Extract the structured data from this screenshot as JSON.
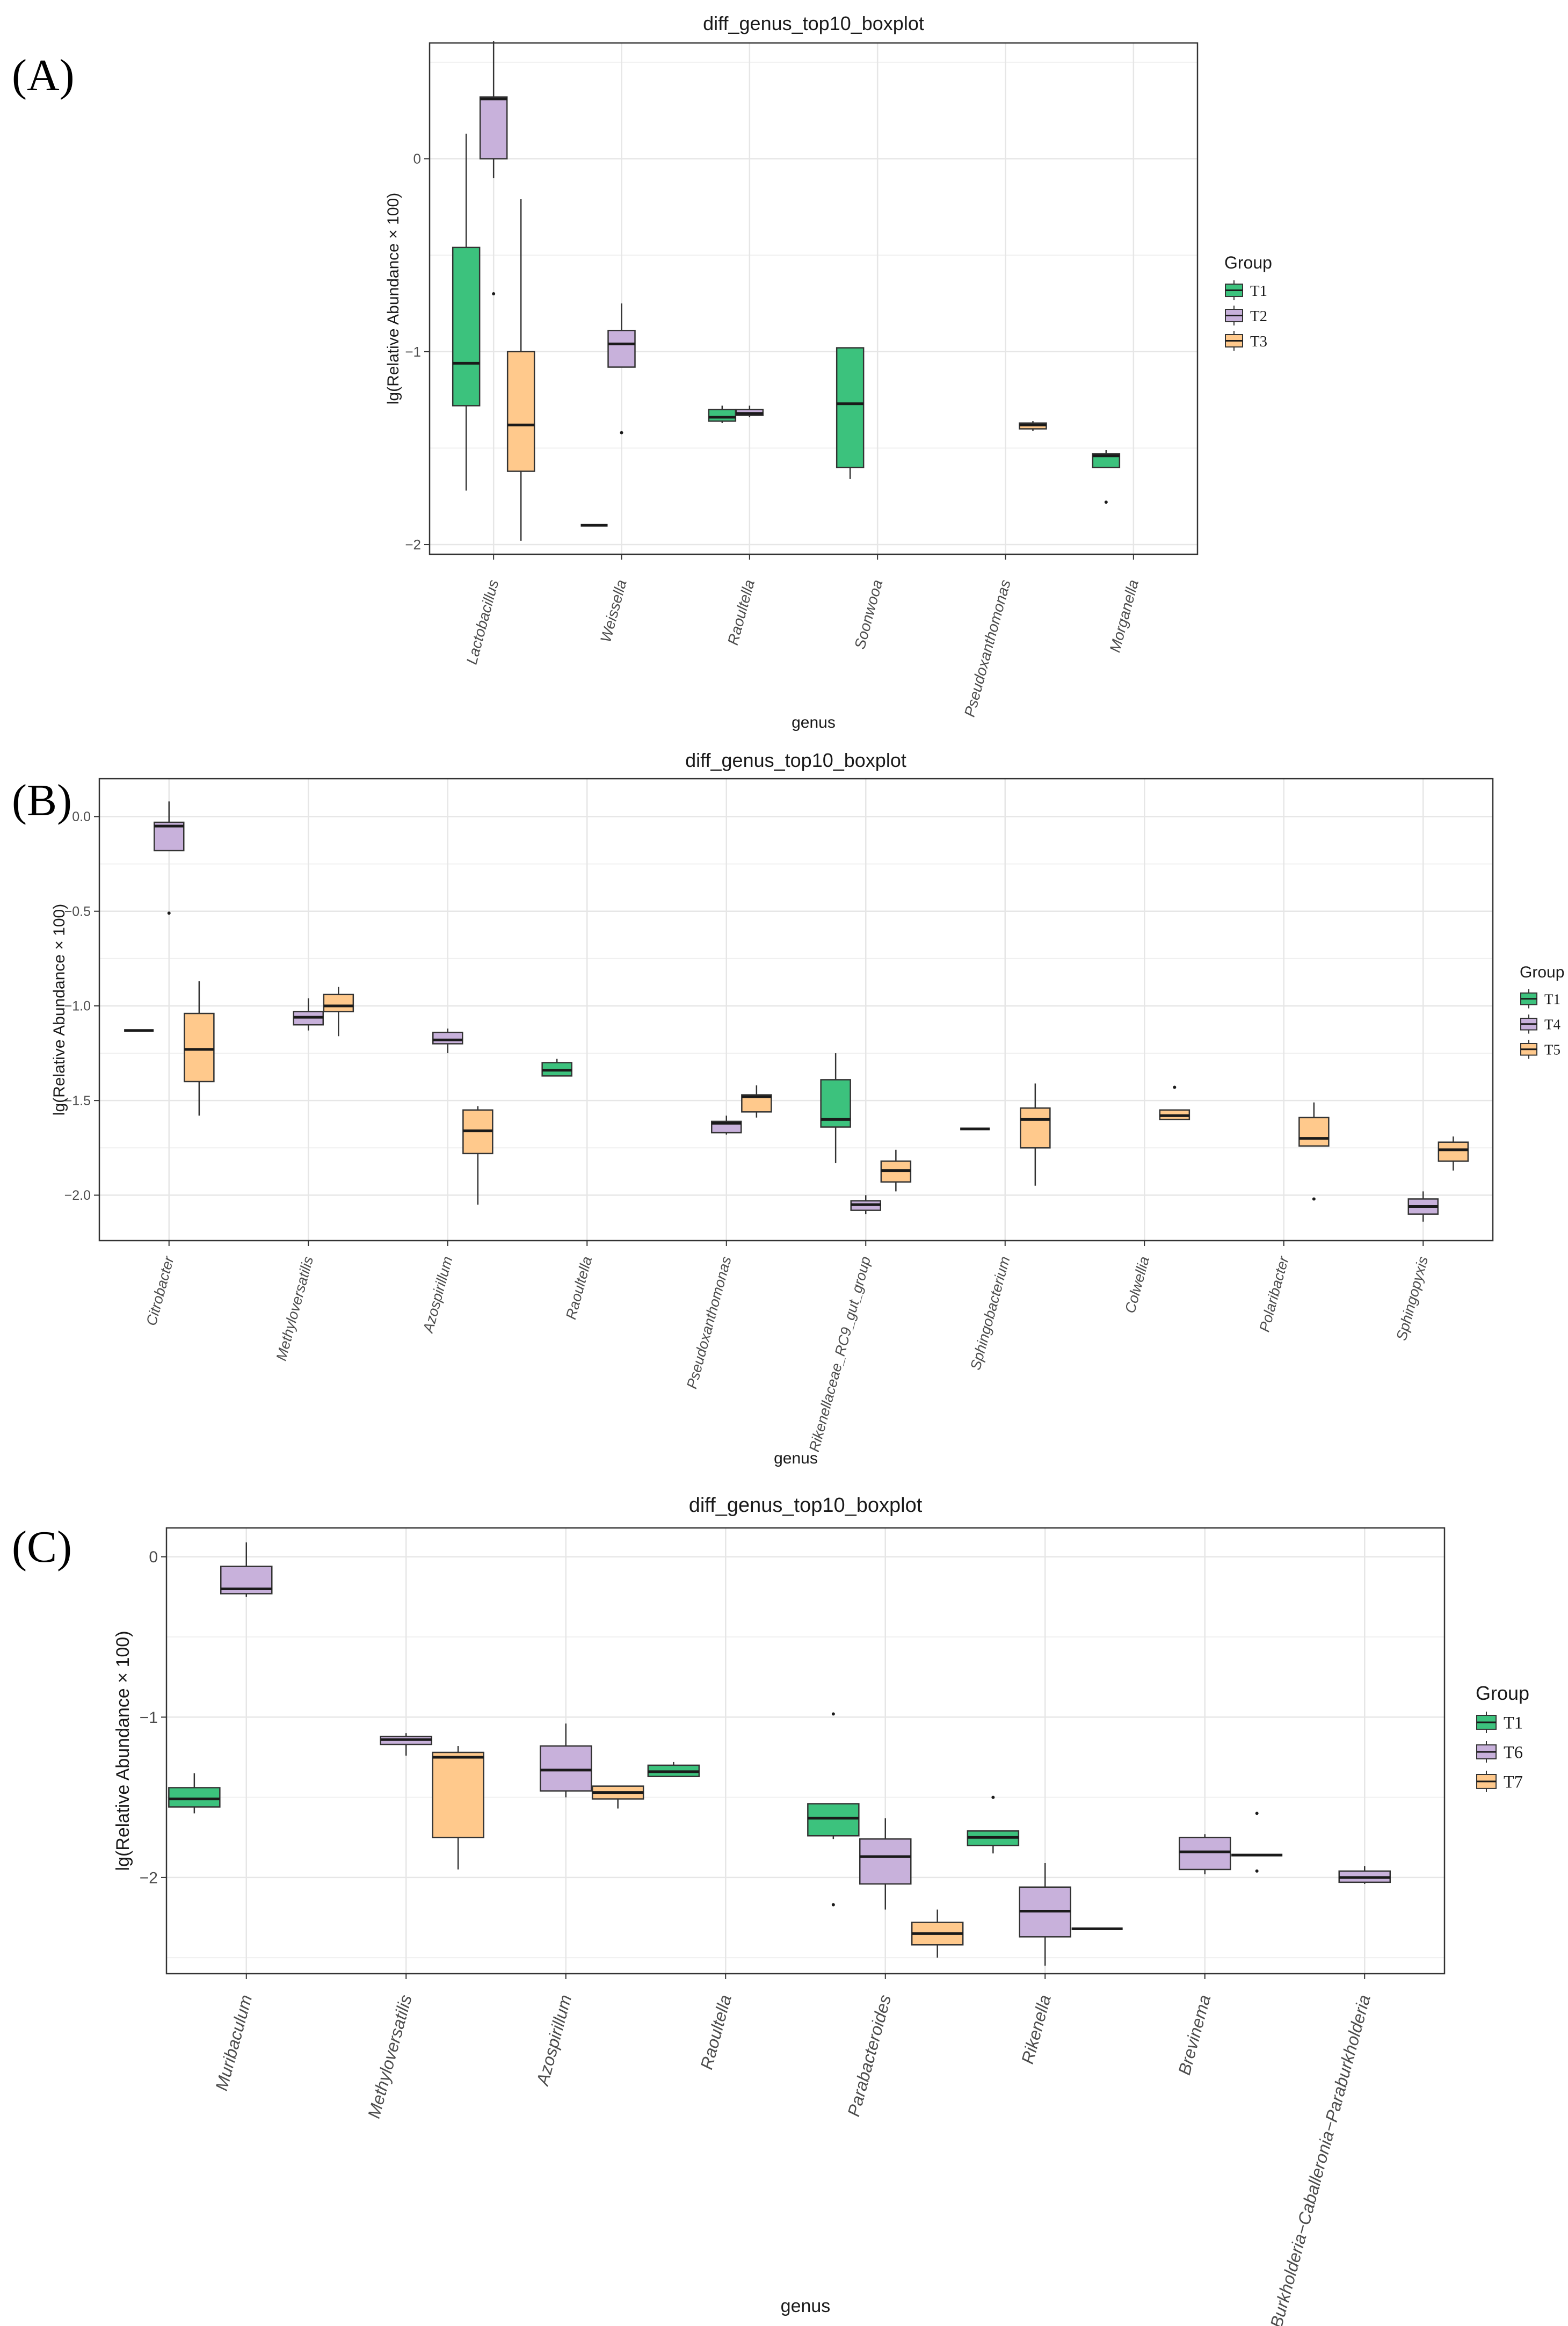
{
  "colors": {
    "T1": "#3CC27D",
    "T2": "#C8B1DB",
    "T3": "#FFC98C",
    "T4": "#C8B1DB",
    "T5": "#FFC98C",
    "T6": "#C8B1DB",
    "T7": "#FFC98C"
  },
  "chart_data": [
    {
      "panel_label": "(A)",
      "type": "boxplot",
      "title": "diff_genus_top10_boxplot",
      "xlabel": "genus",
      "ylabel": "lg(Relative Abundance × 100)",
      "ylim": [
        -2.05,
        0.6
      ],
      "yticks": [
        0,
        -1,
        -2
      ],
      "ytick_labels": [
        "0",
        "−1",
        "−2"
      ],
      "categories": [
        "Lactobacillus",
        "Weissella",
        "Raoultella",
        "Soonwooa",
        "Pseudoxanthomonas",
        "Morganella"
      ],
      "legend": {
        "title": "Group",
        "entries": [
          "T1",
          "T2",
          "T3"
        ]
      },
      "boxes": [
        {
          "category": "Lactobacillus",
          "group": "T1",
          "min": -1.72,
          "q1": -1.28,
          "median": -1.06,
          "q3": -0.46,
          "max": 0.13,
          "outliers": []
        },
        {
          "category": "Lactobacillus",
          "group": "T2",
          "min": -0.1,
          "q1": 0.0,
          "median": 0.31,
          "q3": 0.32,
          "max": 0.61,
          "outliers": [
            -0.7
          ]
        },
        {
          "category": "Lactobacillus",
          "group": "T3",
          "min": -1.98,
          "q1": -1.62,
          "median": -1.38,
          "q3": -1.0,
          "max": -0.21,
          "outliers": []
        },
        {
          "category": "Weissella",
          "group": "T1",
          "min": -1.9,
          "q1": -1.9,
          "median": -1.9,
          "q3": -1.9,
          "max": -1.9,
          "outliers": []
        },
        {
          "category": "Weissella",
          "group": "T2",
          "min": -1.08,
          "q1": -1.08,
          "median": -0.96,
          "q3": -0.89,
          "max": -0.75,
          "outliers": [
            -1.42
          ]
        },
        {
          "category": "Raoultella",
          "group": "T1",
          "min": -1.37,
          "q1": -1.36,
          "median": -1.34,
          "q3": -1.3,
          "max": -1.28,
          "outliers": []
        },
        {
          "category": "Raoultella",
          "group": "T2",
          "min": -1.34,
          "q1": -1.33,
          "median": -1.32,
          "q3": -1.3,
          "max": -1.28,
          "outliers": []
        },
        {
          "category": "Soonwooa",
          "group": "T1",
          "min": -1.66,
          "q1": -1.6,
          "median": -1.27,
          "q3": -0.98,
          "max": -0.98,
          "outliers": []
        },
        {
          "category": "Pseudoxanthomonas",
          "group": "T3",
          "min": -1.41,
          "q1": -1.4,
          "median": -1.38,
          "q3": -1.37,
          "max": -1.36,
          "outliers": []
        },
        {
          "category": "Morganella",
          "group": "T1",
          "min": -1.6,
          "q1": -1.6,
          "median": -1.54,
          "q3": -1.53,
          "max": -1.51,
          "outliers": [
            -1.78
          ]
        }
      ]
    },
    {
      "panel_label": "(B)",
      "type": "boxplot",
      "title": "diff_genus_top10_boxplot",
      "xlabel": "genus",
      "ylabel": "lg(Relative Abundance × 100)",
      "ylim": [
        -2.24,
        0.2
      ],
      "yticks": [
        0.0,
        -0.5,
        -1.0,
        -1.5,
        -2.0
      ],
      "ytick_labels": [
        "0.0",
        "−0.5",
        "−1.0",
        "−1.5",
        "−2.0"
      ],
      "categories": [
        "Citrobacter",
        "Methyloversatilis",
        "Azospirillum",
        "Raoultella",
        "Pseudoxanthomonas",
        "Rikenellaceae_RC9_gut_group",
        "Sphingobacterium",
        "Colwellia",
        "Polaribacter",
        "Sphingopyxis"
      ],
      "legend": {
        "title": "Group",
        "entries": [
          "T1",
          "T4",
          "T5"
        ]
      },
      "boxes": [
        {
          "category": "Citrobacter",
          "group": "T1",
          "min": -1.13,
          "q1": -1.13,
          "median": -1.13,
          "q3": -1.13,
          "max": -1.13,
          "outliers": []
        },
        {
          "category": "Citrobacter",
          "group": "T4",
          "min": -0.18,
          "q1": -0.18,
          "median": -0.05,
          "q3": -0.03,
          "max": 0.08,
          "outliers": [
            -0.51
          ]
        },
        {
          "category": "Citrobacter",
          "group": "T5",
          "min": -1.58,
          "q1": -1.4,
          "median": -1.23,
          "q3": -1.04,
          "max": -0.87,
          "outliers": []
        },
        {
          "category": "Methyloversatilis",
          "group": "T4",
          "min": -1.13,
          "q1": -1.1,
          "median": -1.06,
          "q3": -1.03,
          "max": -0.96,
          "outliers": []
        },
        {
          "category": "Methyloversatilis",
          "group": "T5",
          "min": -1.16,
          "q1": -1.03,
          "median": -1.0,
          "q3": -0.94,
          "max": -0.9,
          "outliers": []
        },
        {
          "category": "Azospirillum",
          "group": "T4",
          "min": -1.25,
          "q1": -1.2,
          "median": -1.18,
          "q3": -1.14,
          "max": -1.12,
          "outliers": []
        },
        {
          "category": "Azospirillum",
          "group": "T5",
          "min": -2.05,
          "q1": -1.78,
          "median": -1.66,
          "q3": -1.55,
          "max": -1.53,
          "outliers": []
        },
        {
          "category": "Raoultella",
          "group": "T1",
          "min": -1.37,
          "q1": -1.37,
          "median": -1.34,
          "q3": -1.3,
          "max": -1.28,
          "outliers": []
        },
        {
          "category": "Pseudoxanthomonas",
          "group": "T4",
          "min": -1.68,
          "q1": -1.67,
          "median": -1.62,
          "q3": -1.61,
          "max": -1.58,
          "outliers": []
        },
        {
          "category": "Pseudoxanthomonas",
          "group": "T5",
          "min": -1.59,
          "q1": -1.56,
          "median": -1.48,
          "q3": -1.47,
          "max": -1.42,
          "outliers": []
        },
        {
          "category": "Rikenellaceae_RC9_gut_group",
          "group": "T1",
          "min": -1.83,
          "q1": -1.64,
          "median": -1.6,
          "q3": -1.39,
          "max": -1.25,
          "outliers": []
        },
        {
          "category": "Rikenellaceae_RC9_gut_group",
          "group": "T4",
          "min": -2.1,
          "q1": -2.08,
          "median": -2.05,
          "q3": -2.03,
          "max": -2.0,
          "outliers": []
        },
        {
          "category": "Rikenellaceae_RC9_gut_group",
          "group": "T5",
          "min": -1.98,
          "q1": -1.93,
          "median": -1.87,
          "q3": -1.82,
          "max": -1.76,
          "outliers": []
        },
        {
          "category": "Sphingobacterium",
          "group": "T1",
          "min": -1.65,
          "q1": -1.65,
          "median": -1.65,
          "q3": -1.65,
          "max": -1.65,
          "outliers": []
        },
        {
          "category": "Sphingobacterium",
          "group": "T5",
          "min": -1.95,
          "q1": -1.75,
          "median": -1.6,
          "q3": -1.54,
          "max": -1.41,
          "outliers": []
        },
        {
          "category": "Colwellia",
          "group": "T5",
          "min": -1.6,
          "q1": -1.6,
          "median": -1.58,
          "q3": -1.55,
          "max": -1.55,
          "outliers": [
            -1.43
          ]
        },
        {
          "category": "Polaribacter",
          "group": "T5",
          "min": -1.74,
          "q1": -1.74,
          "median": -1.7,
          "q3": -1.59,
          "max": -1.51,
          "outliers": [
            -2.02
          ]
        },
        {
          "category": "Sphingopyxis",
          "group": "T4",
          "min": -2.14,
          "q1": -2.1,
          "median": -2.06,
          "q3": -2.02,
          "max": -1.98,
          "outliers": []
        },
        {
          "category": "Sphingopyxis",
          "group": "T5",
          "min": -1.87,
          "q1": -1.82,
          "median": -1.76,
          "q3": -1.72,
          "max": -1.69,
          "outliers": []
        }
      ]
    },
    {
      "panel_label": "(C)",
      "type": "boxplot",
      "title": "diff_genus_top10_boxplot",
      "xlabel": "genus",
      "ylabel": "lg(Relative Abundance × 100)",
      "ylim": [
        -2.6,
        0.18
      ],
      "yticks": [
        0,
        -1,
        -2
      ],
      "ytick_labels": [
        "0",
        "−1",
        "−2"
      ],
      "categories": [
        "Muribaculum",
        "Methyloversatilis",
        "Azospirillum",
        "Raoultella",
        "Parabacteroides",
        "Rikenella",
        "Brevinema",
        "Burkholderia−Caballeronia−Paraburkholderia"
      ],
      "legend": {
        "title": "Group",
        "entries": [
          "T1",
          "T6",
          "T7"
        ]
      },
      "boxes": [
        {
          "category": "Muribaculum",
          "group": "T1",
          "min": -1.6,
          "q1": -1.56,
          "median": -1.51,
          "q3": -1.44,
          "max": -1.35,
          "outliers": []
        },
        {
          "category": "Muribaculum",
          "group": "T6",
          "min": -0.25,
          "q1": -0.23,
          "median": -0.2,
          "q3": -0.06,
          "max": 0.09,
          "outliers": []
        },
        {
          "category": "Methyloversatilis",
          "group": "T6",
          "min": -1.24,
          "q1": -1.17,
          "median": -1.14,
          "q3": -1.12,
          "max": -1.1,
          "outliers": []
        },
        {
          "category": "Methyloversatilis",
          "group": "T7",
          "min": -1.95,
          "q1": -1.75,
          "median": -1.25,
          "q3": -1.22,
          "max": -1.18,
          "outliers": []
        },
        {
          "category": "Azospirillum",
          "group": "T6",
          "min": -1.5,
          "q1": -1.46,
          "median": -1.33,
          "q3": -1.18,
          "max": -1.04,
          "outliers": []
        },
        {
          "category": "Azospirillum",
          "group": "T7",
          "min": -1.57,
          "q1": -1.51,
          "median": -1.47,
          "q3": -1.43,
          "max": -1.43,
          "outliers": []
        },
        {
          "category": "Raoultella",
          "group": "T1",
          "min": -1.37,
          "q1": -1.37,
          "median": -1.34,
          "q3": -1.3,
          "max": -1.28,
          "outliers": []
        },
        {
          "category": "Parabacteroides",
          "group": "T1",
          "min": -1.76,
          "q1": -1.74,
          "median": -1.63,
          "q3": -1.54,
          "max": -1.54,
          "outliers": [
            -0.98,
            -2.17
          ]
        },
        {
          "category": "Parabacteroides",
          "group": "T6",
          "min": -2.2,
          "q1": -2.04,
          "median": -1.87,
          "q3": -1.76,
          "max": -1.63,
          "outliers": []
        },
        {
          "category": "Parabacteroides",
          "group": "T7",
          "min": -2.5,
          "q1": -2.42,
          "median": -2.35,
          "q3": -2.28,
          "max": -2.2,
          "outliers": []
        },
        {
          "category": "Rikenella",
          "group": "T1",
          "min": -1.85,
          "q1": -1.8,
          "median": -1.75,
          "q3": -1.71,
          "max": -1.71,
          "outliers": [
            -1.5
          ]
        },
        {
          "category": "Rikenella",
          "group": "T6",
          "min": -2.55,
          "q1": -2.37,
          "median": -2.21,
          "q3": -2.06,
          "max": -1.91,
          "outliers": []
        },
        {
          "category": "Rikenella",
          "group": "T7",
          "min": -2.32,
          "q1": -2.32,
          "median": -2.32,
          "q3": -2.32,
          "max": -2.32,
          "outliers": []
        },
        {
          "category": "Brevinema",
          "group": "T6",
          "min": -1.98,
          "q1": -1.95,
          "median": -1.84,
          "q3": -1.75,
          "max": -1.73,
          "outliers": []
        },
        {
          "category": "Brevinema",
          "group": "T7",
          "min": -1.86,
          "q1": -1.86,
          "median": -1.86,
          "q3": -1.86,
          "max": -1.86,
          "outliers": [
            -1.6,
            -1.96
          ]
        },
        {
          "category": "Burkholderia−Caballeronia−Paraburkholderia",
          "group": "T6",
          "min": -2.04,
          "q1": -2.03,
          "median": -2.0,
          "q3": -1.96,
          "max": -1.93,
          "outliers": []
        }
      ]
    }
  ]
}
